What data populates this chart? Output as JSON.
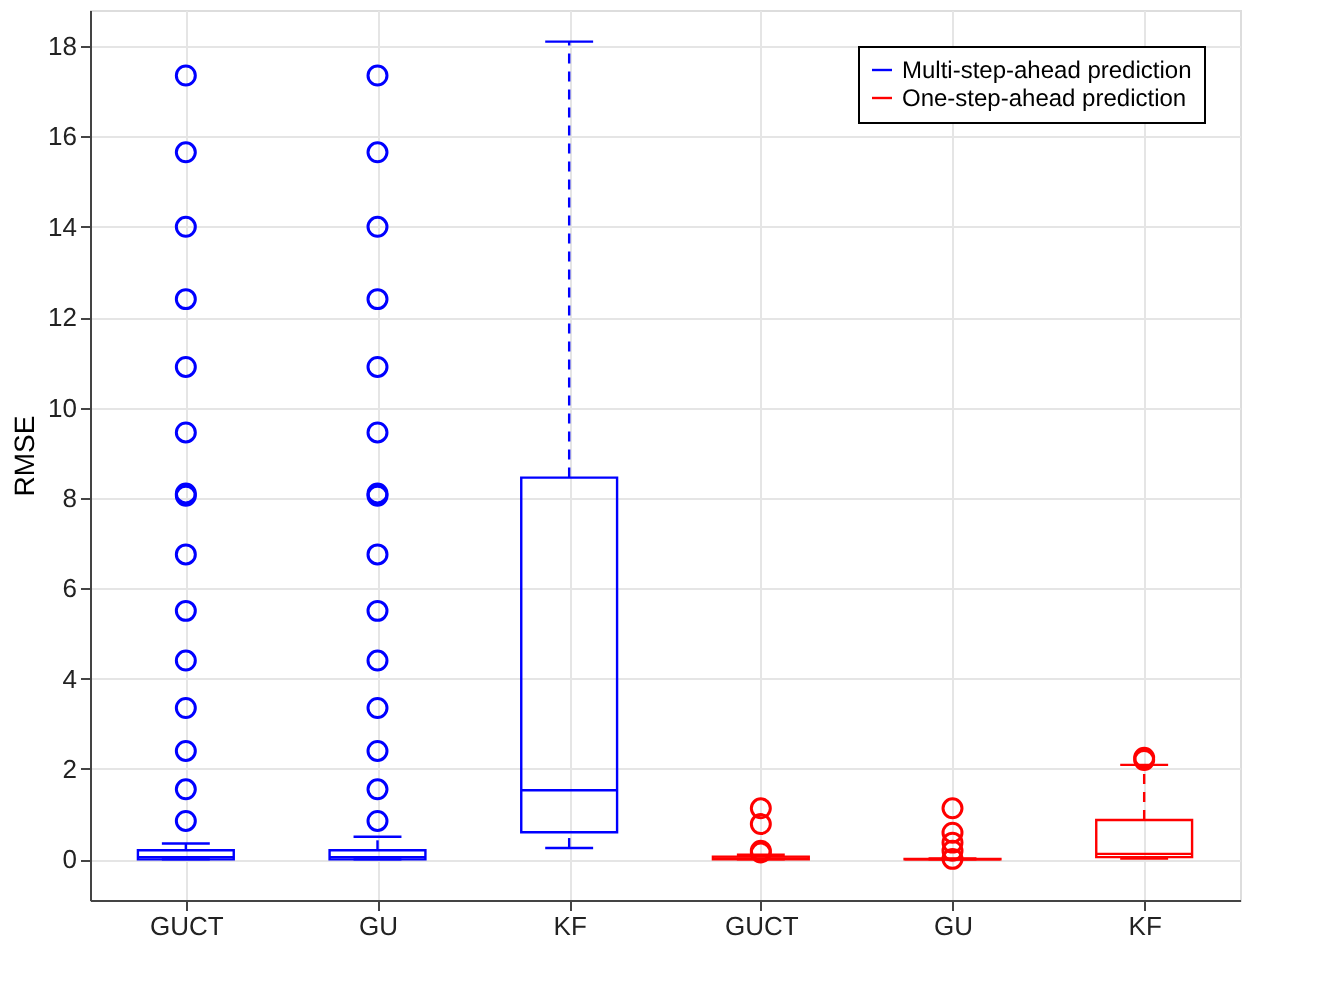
{
  "chart_data": {
    "type": "box",
    "ylabel": "RMSE",
    "categories": [
      "GUCT",
      "GU",
      "KF",
      "GUCT",
      "GU",
      "KF"
    ],
    "ylim": [
      -0.9,
      18.8
    ],
    "yticks": [
      0,
      2,
      4,
      6,
      8,
      10,
      12,
      14,
      16,
      18
    ],
    "grid": true,
    "legend": "top right",
    "line_style": "dashed",
    "marker": "circle",
    "series": [
      {
        "name": "Multi-step-ahead prediction",
        "color": "#0000ff",
        "boxes": [
          {
            "low": 0,
            "q1": 0,
            "median": 0.05,
            "q3": 0.2,
            "high": 0.35,
            "outliers": [
              0.85,
              1.55,
              2.4,
              3.35,
              4.4,
              5.5,
              6.75,
              8.05,
              8.1,
              9.45,
              10.9,
              12.4,
              14.0,
              15.65,
              17.35
            ]
          },
          {
            "low": 0,
            "q1": 0,
            "median": 0.05,
            "q3": 0.2,
            "high": 0.5,
            "outliers": [
              0.85,
              1.55,
              2.4,
              3.35,
              4.4,
              5.5,
              6.75,
              8.05,
              8.1,
              9.45,
              10.9,
              12.4,
              14.0,
              15.65,
              17.35
            ]
          },
          {
            "low": 0.25,
            "q1": 0.6,
            "median": 1.53,
            "q3": 8.45,
            "high": 18.1
          },
          null,
          null,
          null
        ]
      },
      {
        "name": "One-step-ahead prediction",
        "color": "#ff0000",
        "boxes": [
          null,
          null,
          null,
          {
            "low": 0,
            "q1": 0,
            "median": 0.02,
            "q3": 0.06,
            "high": 0.1,
            "outliers": [
              0.15,
              0.19,
              0.78,
              1.13
            ]
          },
          {
            "low": 0,
            "q1": 0,
            "median": 0,
            "q3": 0.01,
            "high": 0.02,
            "outliers": [
              0.01,
              0.19,
              0.37,
              0.59,
              1.13
            ]
          },
          {
            "low": 0.02,
            "q1": 0.05,
            "median": 0.12,
            "q3": 0.87,
            "high": 2.09,
            "outliers": [
              2.2,
              2.25
            ]
          }
        ]
      }
    ]
  }
}
